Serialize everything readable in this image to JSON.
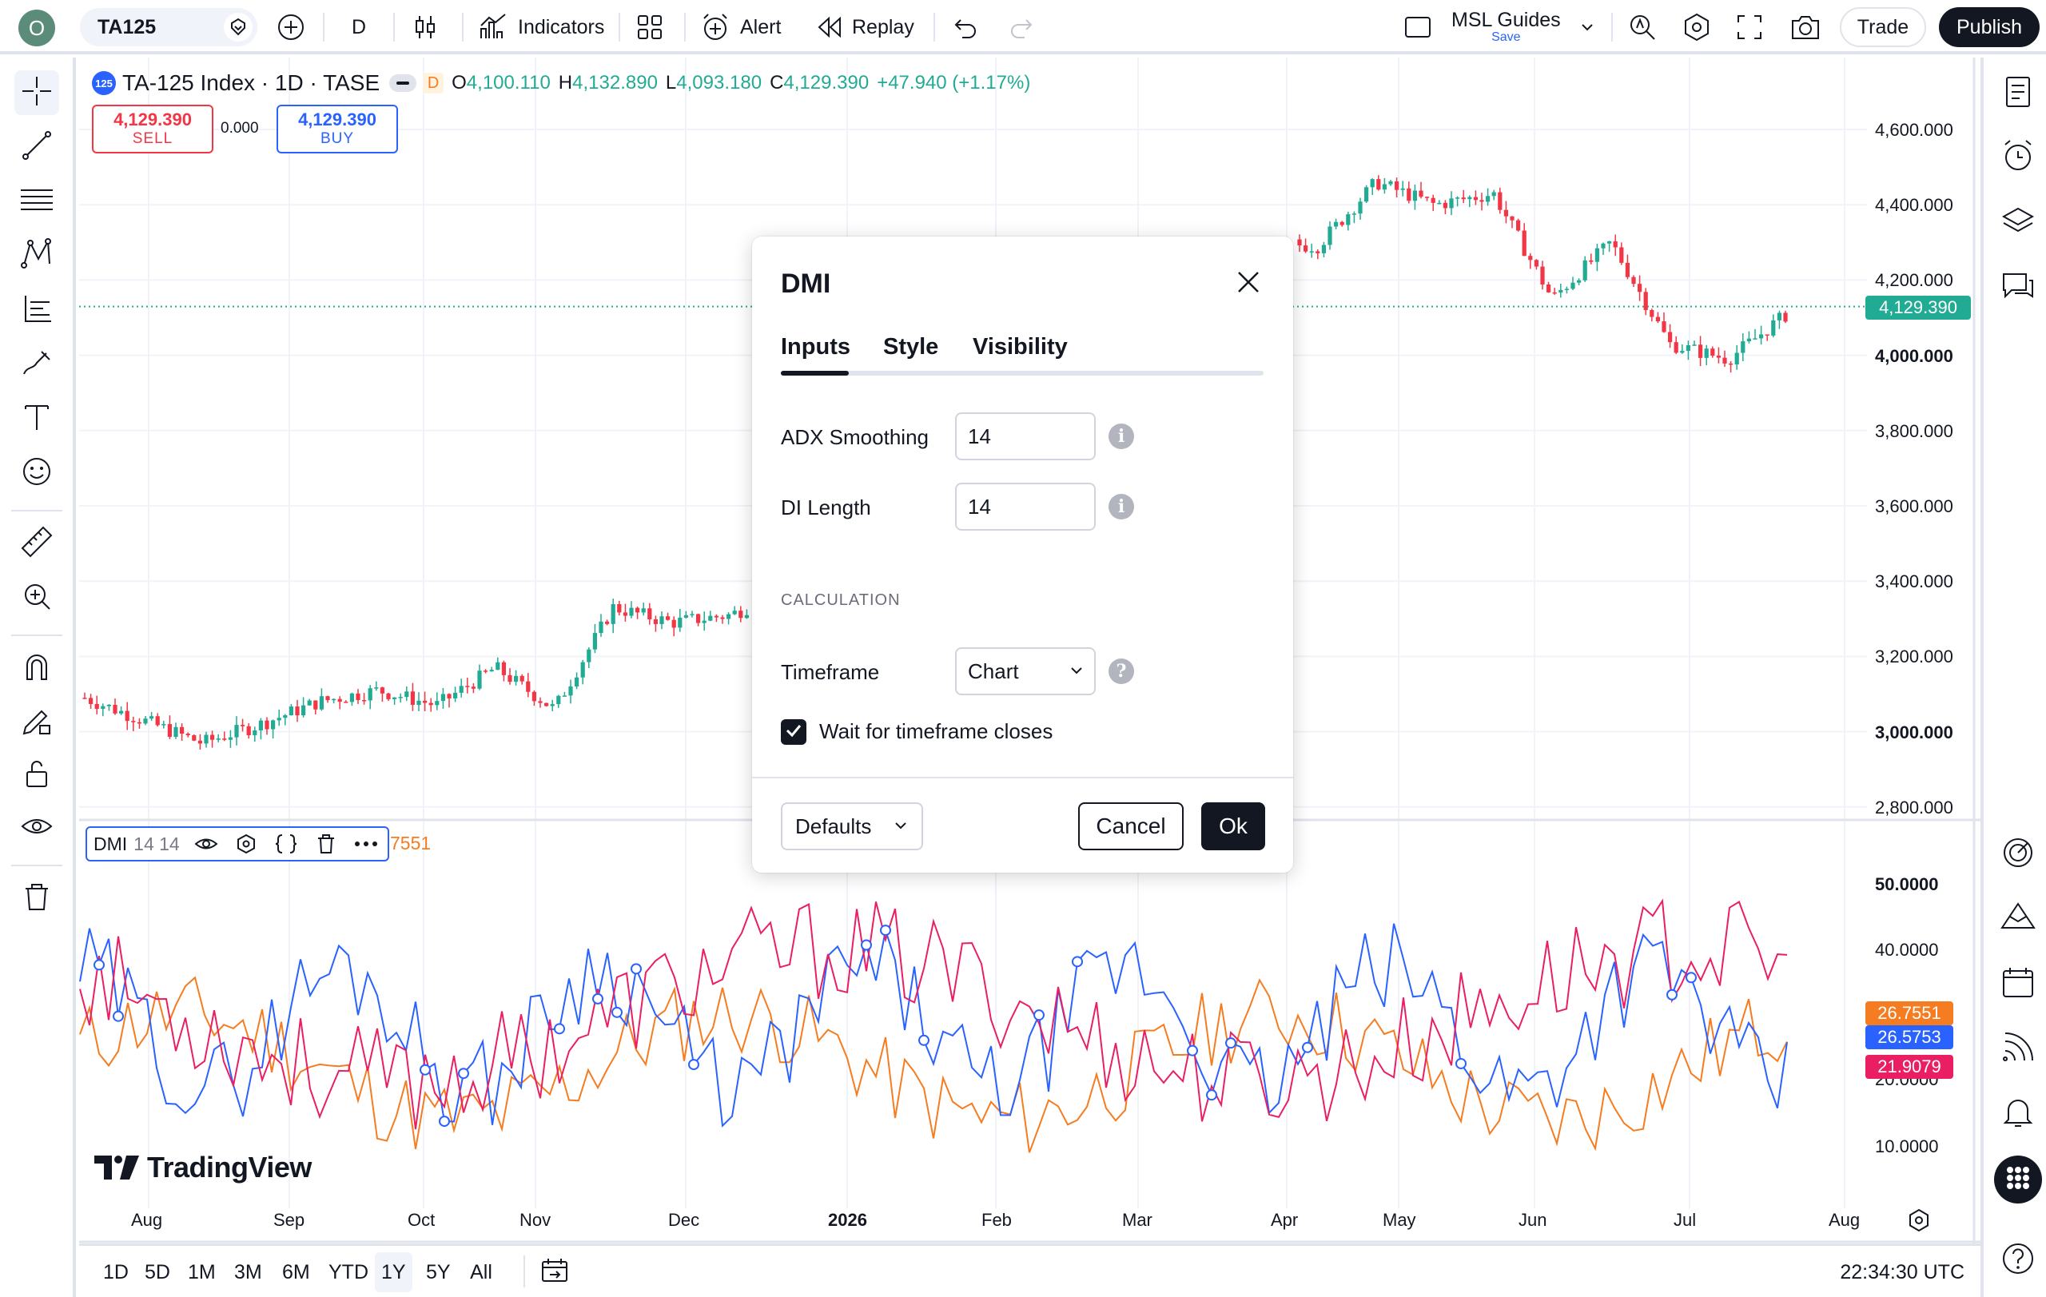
{
  "topbar": {
    "avatar_letter": "O",
    "symbol": "TA125",
    "interval": "D",
    "indicators_label": "Indicators",
    "alert_label": "Alert",
    "replay_label": "Replay",
    "layout_name": "MSL Guides",
    "layout_save": "Save",
    "trade_label": "Trade",
    "publish_label": "Publish"
  },
  "legend": {
    "badge": "125",
    "title": "TA-125 Index · 1D · TASE",
    "delayed_badge": "D",
    "open_label": "O",
    "open": "4,100.110",
    "high_label": "H",
    "high": "4,132.890",
    "low_label": "L",
    "low": "4,093.180",
    "close_label": "C",
    "close": "4,129.390",
    "change": "+47.940 (+1.17%)"
  },
  "trade": {
    "sell_price": "4,129.390",
    "sell_label": "SELL",
    "spread": "0.000",
    "buy_price": "4,129.390",
    "buy_label": "BUY"
  },
  "price_scale": [
    "4,600.000",
    "4,400.000",
    "4,200.000",
    "4,000.000",
    "3,800.000",
    "3,600.000",
    "3,400.000",
    "3,200.000",
    "3,000.000",
    "2,800.000"
  ],
  "current_price": "4,129.390",
  "indicator_scale": [
    "50.0000",
    "40.0000",
    "20.0000",
    "10.0000"
  ],
  "indicator_tags": {
    "adx": "26.7551",
    "plus_di": "26.5753",
    "minus_di": "21.9079"
  },
  "dmi_legend": {
    "name": "DMI",
    "params": "14 14",
    "value_tail": "7551"
  },
  "time_scale": [
    "Aug",
    "Sep",
    "Oct",
    "Nov",
    "Dec",
    "2026",
    "Feb",
    "Mar",
    "Apr",
    "May",
    "Jun",
    "Jul",
    "Aug"
  ],
  "watermark": "TradingView",
  "ranges": [
    "1D",
    "5D",
    "1M",
    "3M",
    "6M",
    "YTD",
    "1Y",
    "5Y",
    "All"
  ],
  "active_range": "1Y",
  "clock": "22:34:30 UTC",
  "dialog": {
    "title": "DMI",
    "tabs": [
      "Inputs",
      "Style",
      "Visibility"
    ],
    "adx_label": "ADX Smoothing",
    "adx_value": "14",
    "di_label": "DI Length",
    "di_value": "14",
    "section": "CALCULATION",
    "timeframe_label": "Timeframe",
    "timeframe_value": "Chart",
    "wait_label": "Wait for timeframe closes",
    "wait_checked": true,
    "defaults_label": "Defaults",
    "cancel_label": "Cancel",
    "ok_label": "Ok"
  },
  "colors": {
    "up": "#22ab94",
    "down": "#f23645",
    "adx": "#f57c20",
    "plus_di": "#2962ff",
    "minus_di": "#e91e63",
    "accent": "#2962ff"
  },
  "chart_data": {
    "type": "candlestick+indicator",
    "symbol": "TA-125 Index",
    "timeframe": "1D",
    "price_range": [
      2800,
      4600
    ],
    "price_path": [
      [
        "Aug",
        3090
      ],
      [
        "Aug",
        3030
      ],
      [
        "Aug",
        2970
      ],
      [
        "Sep",
        3020
      ],
      [
        "Sep",
        3080
      ],
      [
        "Sep",
        3110
      ],
      [
        "Sep",
        3070
      ],
      [
        "Oct",
        3170
      ],
      [
        "Oct",
        3060
      ],
      [
        "Oct",
        3330
      ],
      [
        "Oct",
        3290
      ],
      [
        "Nov",
        3310
      ],
      [
        "Nov",
        3380
      ],
      [
        "Nov",
        3430
      ],
      [
        "Nov",
        3490
      ],
      [
        "Dec",
        3430
      ],
      [
        "Dec",
        3540
      ],
      [
        "Dec",
        3640
      ],
      [
        "2026",
        3920
      ],
      [
        "Feb",
        4180
      ],
      [
        "Mar",
        4300
      ],
      [
        "Apr",
        4290
      ],
      [
        "May",
        4460
      ],
      [
        "May",
        4400
      ],
      [
        "Jun",
        4430
      ],
      [
        "Jun",
        4150
      ],
      [
        "Jun",
        4300
      ],
      [
        "Jul",
        4030
      ],
      [
        "Jul",
        3990
      ],
      [
        "Jul",
        4110
      ]
    ],
    "last": {
      "open": 4100.11,
      "high": 4132.89,
      "low": 4093.18,
      "close": 4129.39,
      "change": 47.94,
      "change_pct": 1.17
    },
    "indicator": {
      "name": "DMI",
      "adx_smoothing": 14,
      "di_length": 14,
      "range": [
        0,
        55
      ],
      "series": [
        {
          "name": "ADX",
          "last": 26.7551
        },
        {
          "name": "+DI",
          "last": 26.5753
        },
        {
          "name": "-DI",
          "last": 21.9079
        }
      ]
    }
  }
}
